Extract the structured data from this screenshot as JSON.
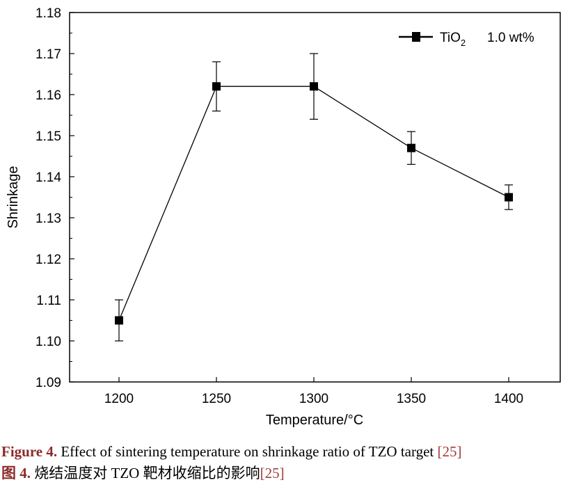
{
  "chart_data": {
    "type": "line",
    "xlabel": "Temperature/°C",
    "ylabel": "Shrinkage",
    "xlim": [
      1175,
      1475
    ],
    "ylim": [
      1.09,
      1.18
    ],
    "xticks": [
      "1200",
      "1250",
      "1300",
      "1350",
      "1400"
    ],
    "yticks": [
      "1.09",
      "1.10",
      "1.11",
      "1.12",
      "1.13",
      "1.14",
      "1.15",
      "1.16",
      "1.17",
      "1.18"
    ],
    "grid": false,
    "legend_position": "top-right",
    "series": [
      {
        "name": "TiO2   1.0 wt%",
        "legend_main": "TiO",
        "legend_sub": "2",
        "legend_rest": "1.0 wt%",
        "marker": "square",
        "color": "#000000",
        "x": [
          1200,
          1250,
          1300,
          1350,
          1400
        ],
        "y": [
          1.105,
          1.162,
          1.162,
          1.147,
          1.135
        ],
        "err_low": [
          1.1,
          1.156,
          1.154,
          1.143,
          1.132
        ],
        "err_high": [
          1.11,
          1.168,
          1.17,
          1.151,
          1.138
        ]
      }
    ]
  },
  "caption": {
    "en_label": "Figure 4.",
    "en_text": " Effect of sintering temperature on shrinkage ratio of TZO target ",
    "en_ref": "[25]",
    "zh_label": "图 4.",
    "zh_text": " 烧结温度对 TZO 靶材收缩比的影响",
    "zh_ref": "[25]"
  }
}
